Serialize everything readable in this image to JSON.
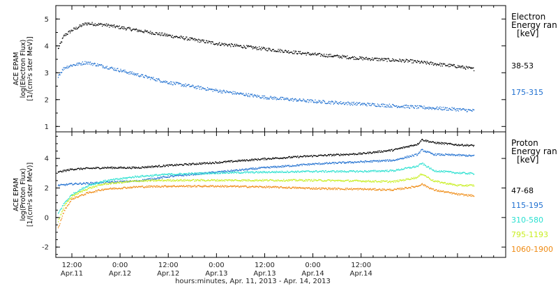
{
  "chart_data": [
    {
      "type": "scatter",
      "panel": "electron",
      "ylabel": [
        "ACE EPAM",
        "log(Electron Flux)",
        "[1/(cm²s ster MeV)]"
      ],
      "ylim": [
        0.8,
        5.5
      ],
      "yticks": [
        1,
        2,
        3,
        4,
        5
      ],
      "xlim_hours": [
        -4,
        108
      ],
      "legend_title": [
        "Electron",
        "Energy ran",
        "[keV]"
      ],
      "series": [
        {
          "name": "38-53",
          "color": "#000000",
          "x": [
            -3.5,
            -2,
            0,
            2,
            3.5,
            8,
            16,
            24,
            36,
            48,
            60,
            72,
            84,
            90,
            96,
            100
          ],
          "y": [
            3.9,
            4.4,
            4.6,
            4.75,
            4.85,
            4.8,
            4.6,
            4.4,
            4.1,
            3.9,
            3.7,
            3.55,
            3.45,
            3.35,
            3.25,
            3.15
          ]
        },
        {
          "name": "175-315",
          "color": "#1e6fd0",
          "x": [
            -3.5,
            -2,
            0,
            2,
            3.5,
            8,
            16,
            24,
            36,
            48,
            60,
            72,
            84,
            90,
            96,
            100
          ],
          "y": [
            2.9,
            3.2,
            3.3,
            3.35,
            3.4,
            3.25,
            2.95,
            2.65,
            2.35,
            2.1,
            1.95,
            1.85,
            1.75,
            1.7,
            1.65,
            1.6
          ]
        }
      ]
    },
    {
      "type": "scatter",
      "panel": "proton",
      "ylabel": [
        "ACE EPAM",
        "log(Proton Flux)",
        "[1/(cm²s ster MeV)]"
      ],
      "ylim": [
        -2.7,
        5.8
      ],
      "yticks": [
        -2,
        0,
        2,
        4
      ],
      "xlim_hours": [
        -4,
        108
      ],
      "xtick_hours": [
        0,
        12,
        24,
        36,
        48,
        60,
        72,
        84,
        96,
        108
      ],
      "xtick_labels": [
        [
          "12:00",
          "Apr.11"
        ],
        [
          "0:00",
          "Apr.12"
        ],
        [
          "12:00",
          "Apr.12"
        ],
        [
          "0:00",
          "Apr.13"
        ],
        [
          "12:00",
          "Apr.13"
        ],
        [
          "0:00",
          "Apr.14"
        ],
        [
          "12:00",
          "Apr.14"
        ],
        [
          "",
          ""
        ],
        [
          "",
          ""
        ],
        [
          "",
          ""
        ]
      ],
      "xlabel": "hours:minutes, Apr. 11, 2013 - Apr. 14, 2013",
      "legend_title": [
        "Proton",
        "Energy ran",
        "[keV]"
      ],
      "series": [
        {
          "name": "47-68",
          "color": "#000000",
          "x": [
            -3.5,
            0,
            8,
            16,
            24,
            36,
            48,
            60,
            72,
            80,
            86,
            87,
            90,
            96,
            100
          ],
          "y": [
            3.1,
            3.3,
            3.4,
            3.4,
            3.55,
            3.75,
            4.0,
            4.2,
            4.35,
            4.6,
            5.0,
            5.3,
            5.1,
            4.95,
            4.9
          ]
        },
        {
          "name": "115-195",
          "color": "#1e6fd0",
          "x": [
            -3.5,
            0,
            8,
            16,
            24,
            36,
            48,
            60,
            72,
            80,
            86,
            87,
            90,
            96,
            100
          ],
          "y": [
            2.2,
            2.3,
            2.4,
            2.5,
            2.8,
            3.1,
            3.4,
            3.65,
            3.8,
            3.9,
            4.3,
            4.6,
            4.3,
            4.25,
            4.2
          ]
        },
        {
          "name": "310-580",
          "color": "#29e0d0",
          "x": [
            -3.5,
            -2,
            0,
            4,
            8,
            16,
            24,
            36,
            48,
            60,
            72,
            80,
            86,
            87,
            90,
            96,
            100
          ],
          "y": [
            0.3,
            1.0,
            1.6,
            2.2,
            2.5,
            2.8,
            2.95,
            3.05,
            3.1,
            3.15,
            3.15,
            3.2,
            3.5,
            3.7,
            3.2,
            3.05,
            3.0
          ]
        },
        {
          "name": "795-1193",
          "color": "#c8ee20",
          "x": [
            -3.5,
            -2,
            0,
            4,
            8,
            16,
            24,
            36,
            48,
            60,
            72,
            80,
            86,
            87,
            90,
            96,
            100
          ],
          "y": [
            -0.2,
            0.8,
            1.5,
            2.0,
            2.3,
            2.5,
            2.55,
            2.55,
            2.55,
            2.55,
            2.5,
            2.45,
            2.75,
            3.0,
            2.5,
            2.2,
            2.2
          ]
        },
        {
          "name": "1060-1900",
          "color": "#ef8a12",
          "x": [
            -3.5,
            -2,
            0,
            4,
            8,
            16,
            24,
            36,
            48,
            60,
            72,
            80,
            86,
            87,
            90,
            96,
            100
          ],
          "y": [
            -0.7,
            0.5,
            1.3,
            1.7,
            1.95,
            2.1,
            2.15,
            2.15,
            2.1,
            2.0,
            1.95,
            1.9,
            2.15,
            2.3,
            1.9,
            1.6,
            1.5
          ]
        }
      ]
    }
  ]
}
